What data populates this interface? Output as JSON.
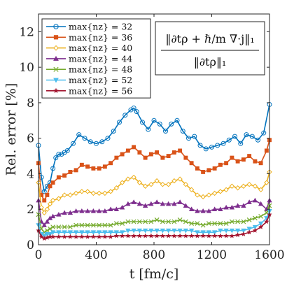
{
  "chart_data": {
    "type": "line",
    "xlabel": "t [fm/c]",
    "ylabel": "Rel. error [%]",
    "xlim": [
      0,
      1600
    ],
    "ylim": [
      0,
      13
    ],
    "xticks": [
      0,
      400,
      800,
      1200,
      1600
    ],
    "yticks": [
      0,
      2,
      4,
      6,
      8,
      10,
      12
    ],
    "grid": false,
    "legend_position": "top-left",
    "annotation": {
      "numerator": "‖∂tρ + ℏ/m ∇·j‖₁",
      "denominator": "‖∂tρ‖₁",
      "position": "top-right"
    },
    "series": [
      {
        "name": "max{nz} = 32",
        "color": "#0072BD",
        "marker": "circle",
        "x": [
          0,
          20,
          40,
          60,
          80,
          100,
          120,
          140,
          160,
          180,
          200,
          240,
          280,
          320,
          360,
          400,
          440,
          480,
          520,
          560,
          600,
          640,
          660,
          680,
          720,
          760,
          800,
          840,
          880,
          920,
          960,
          1000,
          1040,
          1080,
          1120,
          1160,
          1200,
          1240,
          1280,
          1320,
          1360,
          1400,
          1440,
          1480,
          1520,
          1560,
          1600
        ],
        "y": [
          5.6,
          3.8,
          3.0,
          3.3,
          3.5,
          4.3,
          4.9,
          5.1,
          5.1,
          5.2,
          5.3,
          5.7,
          6.2,
          6.0,
          5.8,
          5.7,
          5.8,
          6.0,
          6.4,
          6.9,
          7.3,
          7.6,
          7.7,
          7.5,
          6.9,
          6.5,
          7.0,
          6.8,
          6.4,
          6.8,
          7.0,
          6.4,
          6.0,
          6.1,
          5.6,
          5.4,
          5.5,
          5.6,
          5.7,
          5.9,
          6.1,
          5.7,
          6.2,
          6.1,
          5.9,
          6.3,
          7.9
        ]
      },
      {
        "name": "max{nz} = 36",
        "color": "#D95319",
        "marker": "square",
        "x": [
          0,
          20,
          40,
          60,
          80,
          100,
          140,
          180,
          220,
          260,
          300,
          340,
          380,
          420,
          460,
          500,
          540,
          580,
          620,
          660,
          700,
          740,
          780,
          820,
          860,
          900,
          940,
          980,
          1020,
          1060,
          1100,
          1140,
          1180,
          1220,
          1260,
          1300,
          1340,
          1380,
          1420,
          1460,
          1500,
          1540,
          1580,
          1600
        ],
        "y": [
          4.6,
          2.8,
          2.5,
          2.8,
          3.3,
          3.5,
          3.8,
          3.9,
          4.1,
          4.2,
          4.5,
          4.4,
          4.3,
          4.3,
          4.4,
          4.6,
          4.9,
          5.1,
          5.3,
          5.5,
          5.2,
          4.9,
          5.1,
          5.2,
          4.9,
          5.0,
          5.2,
          5.3,
          4.9,
          4.6,
          4.3,
          4.1,
          4.2,
          4.3,
          4.5,
          4.6,
          4.9,
          4.7,
          4.8,
          5.0,
          4.7,
          4.6,
          5.3,
          5.9
        ]
      },
      {
        "name": "max{nz} = 40",
        "color": "#EDB120",
        "marker": "diamond",
        "x": [
          0,
          20,
          40,
          60,
          80,
          100,
          140,
          180,
          220,
          260,
          300,
          340,
          380,
          420,
          460,
          500,
          540,
          580,
          620,
          660,
          700,
          740,
          780,
          820,
          860,
          900,
          940,
          980,
          1020,
          1060,
          1100,
          1140,
          1180,
          1220,
          1260,
          1300,
          1340,
          1380,
          1420,
          1460,
          1500,
          1540,
          1580,
          1600
        ],
        "y": [
          3.5,
          2.1,
          1.8,
          2.0,
          2.3,
          2.5,
          2.6,
          2.8,
          2.8,
          2.9,
          3.0,
          3.0,
          2.9,
          2.9,
          2.9,
          3.0,
          3.2,
          3.5,
          3.7,
          3.8,
          3.5,
          3.3,
          3.4,
          3.6,
          3.4,
          3.4,
          3.6,
          3.7,
          3.4,
          3.1,
          2.8,
          2.7,
          2.8,
          2.9,
          3.0,
          3.1,
          3.3,
          3.2,
          3.3,
          3.4,
          3.3,
          3.1,
          3.5,
          4.1
        ]
      },
      {
        "name": "max{nz} = 44",
        "color": "#7E2F8E",
        "marker": "triangle-up",
        "x": [
          0,
          20,
          40,
          60,
          80,
          100,
          140,
          180,
          220,
          260,
          300,
          340,
          380,
          420,
          460,
          500,
          540,
          580,
          620,
          660,
          700,
          740,
          780,
          820,
          860,
          900,
          940,
          980,
          1020,
          1060,
          1100,
          1140,
          1180,
          1220,
          1260,
          1300,
          1340,
          1380,
          1420,
          1460,
          1500,
          1540,
          1580,
          1600
        ],
        "y": [
          2.5,
          1.3,
          1.1,
          1.3,
          1.5,
          1.6,
          1.7,
          1.8,
          1.8,
          1.9,
          1.9,
          1.9,
          1.9,
          1.9,
          1.9,
          2.0,
          2.0,
          2.1,
          2.3,
          2.4,
          2.3,
          2.2,
          2.3,
          2.4,
          2.3,
          2.3,
          2.3,
          2.4,
          2.2,
          2.0,
          1.9,
          1.9,
          1.9,
          2.0,
          2.0,
          2.1,
          2.1,
          2.2,
          2.2,
          2.4,
          2.5,
          2.3,
          2.0,
          2.5
        ]
      },
      {
        "name": "max{nz} = 48",
        "color": "#77AC30",
        "marker": "x",
        "x": [
          0,
          20,
          40,
          60,
          80,
          100,
          140,
          180,
          220,
          260,
          300,
          340,
          380,
          420,
          460,
          500,
          540,
          580,
          620,
          660,
          700,
          740,
          780,
          820,
          860,
          900,
          940,
          980,
          1020,
          1060,
          1100,
          1140,
          1180,
          1220,
          1260,
          1300,
          1340,
          1380,
          1420,
          1460,
          1500,
          1540,
          1580,
          1600
        ],
        "y": [
          1.7,
          0.9,
          0.7,
          0.8,
          0.9,
          1.0,
          1.0,
          1.0,
          1.0,
          1.1,
          1.1,
          1.1,
          1.1,
          1.1,
          1.1,
          1.1,
          1.2,
          1.2,
          1.3,
          1.3,
          1.3,
          1.3,
          1.3,
          1.4,
          1.3,
          1.3,
          1.3,
          1.4,
          1.3,
          1.2,
          1.2,
          1.1,
          1.2,
          1.2,
          1.2,
          1.2,
          1.3,
          1.3,
          1.3,
          1.4,
          1.5,
          1.6,
          1.8,
          2.2
        ]
      },
      {
        "name": "max{nz} = 52",
        "color": "#4DBEEE",
        "marker": "triangle-down",
        "x": [
          0,
          20,
          40,
          60,
          80,
          100,
          140,
          180,
          220,
          260,
          300,
          340,
          380,
          420,
          460,
          500,
          540,
          580,
          620,
          660,
          700,
          740,
          780,
          820,
          860,
          900,
          940,
          980,
          1020,
          1060,
          1100,
          1140,
          1180,
          1220,
          1260,
          1300,
          1340,
          1380,
          1420,
          1460,
          1500,
          1540,
          1580,
          1600
        ],
        "y": [
          1.1,
          0.6,
          0.5,
          0.6,
          0.6,
          0.7,
          0.7,
          0.7,
          0.7,
          0.7,
          0.7,
          0.7,
          0.7,
          0.7,
          0.7,
          0.7,
          0.7,
          0.7,
          0.8,
          0.8,
          0.8,
          0.8,
          0.8,
          0.8,
          0.8,
          0.8,
          0.8,
          0.8,
          0.8,
          0.8,
          0.7,
          0.7,
          0.7,
          0.7,
          0.8,
          0.8,
          0.8,
          0.8,
          0.8,
          0.9,
          1.0,
          1.2,
          1.5,
          1.9
        ]
      },
      {
        "name": "max{nz} = 56",
        "color": "#A2142F",
        "marker": "star",
        "x": [
          0,
          20,
          40,
          60,
          80,
          100,
          140,
          180,
          220,
          260,
          300,
          340,
          380,
          420,
          460,
          500,
          540,
          580,
          620,
          660,
          700,
          740,
          780,
          820,
          860,
          900,
          940,
          980,
          1020,
          1060,
          1100,
          1140,
          1180,
          1220,
          1260,
          1300,
          1340,
          1380,
          1420,
          1460,
          1500,
          1540,
          1580,
          1600
        ],
        "y": [
          0.8,
          0.45,
          0.35,
          0.4,
          0.45,
          0.45,
          0.45,
          0.45,
          0.45,
          0.45,
          0.45,
          0.45,
          0.45,
          0.45,
          0.45,
          0.45,
          0.5,
          0.5,
          0.5,
          0.5,
          0.5,
          0.5,
          0.5,
          0.5,
          0.5,
          0.5,
          0.5,
          0.5,
          0.5,
          0.5,
          0.5,
          0.5,
          0.5,
          0.5,
          0.5,
          0.5,
          0.5,
          0.55,
          0.6,
          0.7,
          0.8,
          1.0,
          1.3,
          1.7
        ]
      }
    ]
  }
}
